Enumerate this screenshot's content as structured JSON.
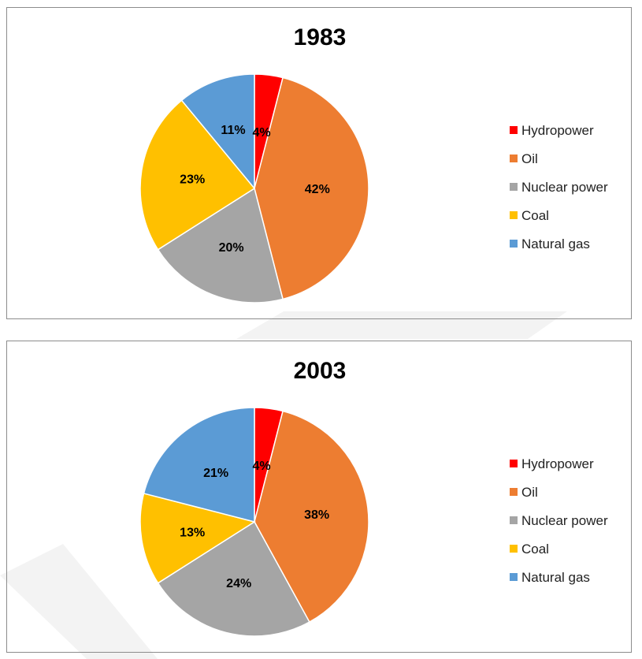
{
  "chart_data": [
    {
      "type": "pie",
      "title": "1983",
      "categories": [
        "Hydropower",
        "Oil",
        "Nuclear power",
        "Coal",
        "Natural gas"
      ],
      "values": [
        4,
        42,
        20,
        23,
        11
      ],
      "labels": [
        "4%",
        "42%",
        "20%",
        "23%",
        "11%"
      ],
      "colors": [
        "#ff0000",
        "#ed7d31",
        "#a5a5a5",
        "#ffc000",
        "#5b9bd5"
      ],
      "legend_position": "right"
    },
    {
      "type": "pie",
      "title": "2003",
      "categories": [
        "Hydropower",
        "Oil",
        "Nuclear power",
        "Coal",
        "Natural gas"
      ],
      "values": [
        4,
        38,
        24,
        13,
        21
      ],
      "labels": [
        "4%",
        "38%",
        "24%",
        "13%",
        "21%"
      ],
      "colors": [
        "#ff0000",
        "#ed7d31",
        "#a5a5a5",
        "#ffc000",
        "#5b9bd5"
      ],
      "legend_position": "right"
    }
  ]
}
